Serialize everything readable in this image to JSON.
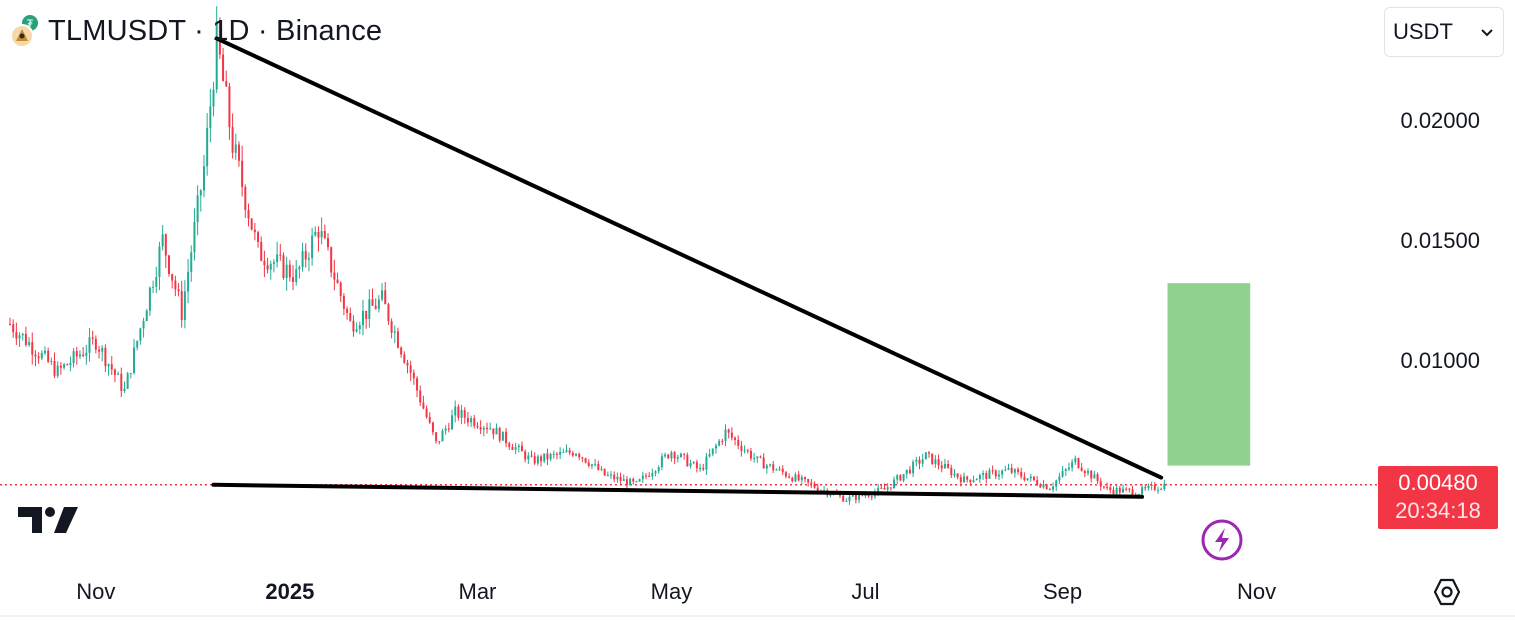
{
  "header": {
    "title": "TLMUSDT · 1D · Binance",
    "currency_label": "USDT"
  },
  "price_label": {
    "price": "0.00480",
    "countdown": "20:34:18",
    "color": "#f23645"
  },
  "icons": [
    "tether-icon",
    "alien-worlds-icon",
    "chevron-down-icon",
    "tradingview-logo",
    "lightning-icon",
    "settings-icon"
  ],
  "colors": {
    "up": "#22ab94",
    "down": "#f23645",
    "target_box": "#8fd18f",
    "trendline": "#000000",
    "accent": "#9c27b0"
  },
  "chart_data": {
    "type": "candlestick",
    "symbol": "TLMUSDT",
    "interval": "1D",
    "exchange": "Binance",
    "x_tick_labels": [
      "Nov",
      "2025",
      "Mar",
      "May",
      "Jul",
      "Sep",
      "Nov"
    ],
    "y_tick_labels": [
      "0.02000",
      "0.01500",
      "0.01000"
    ],
    "y_ticks": [
      0.02,
      0.015,
      0.01
    ],
    "ylim": [
      0.0018,
      0.0244
    ],
    "x_range": [
      "2024-10-05",
      "2025-12-01"
    ],
    "last_price": 0.0048,
    "grid": false,
    "key_points": [
      {
        "date": "2024-10-05",
        "price": 0.0115
      },
      {
        "date": "2024-10-20",
        "price": 0.0095
      },
      {
        "date": "2024-11-01",
        "price": 0.0108
      },
      {
        "date": "2024-11-10",
        "price": 0.0087
      },
      {
        "date": "2024-11-22",
        "price": 0.015
      },
      {
        "date": "2024-11-28",
        "price": 0.012
      },
      {
        "date": "2024-12-05",
        "price": 0.018
      },
      {
        "date": "2024-12-09",
        "price": 0.0233
      },
      {
        "date": "2024-12-14",
        "price": 0.019
      },
      {
        "date": "2024-12-22",
        "price": 0.0145
      },
      {
        "date": "2025-01-03",
        "price": 0.0135
      },
      {
        "date": "2025-01-10",
        "price": 0.0155
      },
      {
        "date": "2025-01-20",
        "price": 0.0115
      },
      {
        "date": "2025-01-30",
        "price": 0.0125
      },
      {
        "date": "2025-02-08",
        "price": 0.0095
      },
      {
        "date": "2025-02-16",
        "price": 0.0065
      },
      {
        "date": "2025-02-22",
        "price": 0.0078
      },
      {
        "date": "2025-03-05",
        "price": 0.0072
      },
      {
        "date": "2025-03-18",
        "price": 0.0058
      },
      {
        "date": "2025-04-01",
        "price": 0.0062
      },
      {
        "date": "2025-04-10",
        "price": 0.0052
      },
      {
        "date": "2025-04-20",
        "price": 0.0048
      },
      {
        "date": "2025-05-01",
        "price": 0.0062
      },
      {
        "date": "2025-05-10",
        "price": 0.0054
      },
      {
        "date": "2025-05-18",
        "price": 0.007
      },
      {
        "date": "2025-05-28",
        "price": 0.0058
      },
      {
        "date": "2025-06-10",
        "price": 0.005
      },
      {
        "date": "2025-06-25",
        "price": 0.0042
      },
      {
        "date": "2025-07-07",
        "price": 0.0046
      },
      {
        "date": "2025-07-20",
        "price": 0.006
      },
      {
        "date": "2025-08-01",
        "price": 0.005
      },
      {
        "date": "2025-08-15",
        "price": 0.0054
      },
      {
        "date": "2025-08-28",
        "price": 0.0047
      },
      {
        "date": "2025-09-05",
        "price": 0.0058
      },
      {
        "date": "2025-09-15",
        "price": 0.0046
      },
      {
        "date": "2025-09-25",
        "price": 0.0045
      },
      {
        "date": "2025-10-03",
        "price": 0.0048
      }
    ],
    "drawings": {
      "descending_trendline": [
        {
          "date": "2024-12-09",
          "price": 0.0234
        },
        {
          "date": "2025-10-02",
          "price": 0.0051
        }
      ],
      "support_line": [
        {
          "date": "2024-12-08",
          "price": 0.0048
        },
        {
          "date": "2025-09-26",
          "price": 0.0043
        }
      ],
      "target_box": {
        "date_from": "2025-10-04",
        "date_to": "2025-10-30",
        "price_low": 0.0056,
        "price_high": 0.0132
      }
    }
  }
}
